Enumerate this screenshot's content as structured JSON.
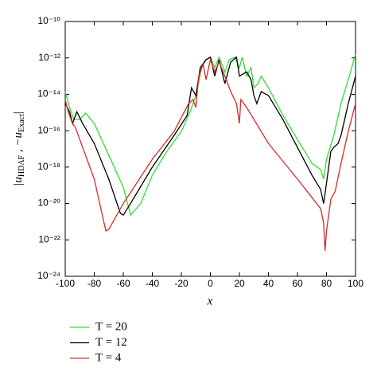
{
  "chart_data": {
    "type": "line",
    "xlabel": "x",
    "ylabel": [
      "|u",
      "HDAF",
      " , −u",
      "Exact",
      "|"
    ],
    "xlim": [
      -100,
      100
    ],
    "xticks": [
      -100,
      -80,
      -60,
      -40,
      -20,
      0,
      20,
      40,
      60,
      80,
      100
    ],
    "ylim": [
      1e-24,
      1e-10
    ],
    "yscale": "log",
    "yticks": [
      {
        "value": 1e-24,
        "label": "10⁻²⁴"
      },
      {
        "value": 1e-22,
        "label": "10⁻²²"
      },
      {
        "value": 1e-20,
        "label": "10⁻²⁰"
      },
      {
        "value": 1e-18,
        "label": "10⁻¹⁸"
      },
      {
        "value": 1e-16,
        "label": "10⁻¹⁶"
      },
      {
        "value": 1e-14,
        "label": "10⁻¹⁴"
      },
      {
        "value": 1e-12,
        "label": "10⁻¹²"
      },
      {
        "value": 1e-10,
        "label": "10⁻¹⁰"
      }
    ],
    "legend": "below",
    "series": [
      {
        "name": "T = 20",
        "color": "#33dd33",
        "x": [
          -100,
          -97,
          -94,
          -90,
          -86,
          -80,
          -70,
          -60,
          -55,
          -48,
          -40,
          -30,
          -20,
          -14,
          -10,
          -6,
          -3,
          0,
          3,
          6,
          10,
          13,
          17,
          20,
          22,
          25,
          28,
          30,
          33,
          35,
          40,
          50,
          60,
          70,
          76,
          78,
          80,
          85,
          90,
          95,
          100
        ],
        "values": [
          1.4e-14,
          1.9e-15,
          4.1e-16,
          4.1e-16,
          9.3e-16,
          2.5e-16,
          4.5e-18,
          7.9e-20,
          2.3e-21,
          1e-20,
          3.6e-19,
          7.4e-18,
          9.1e-17,
          1.1e-15,
          8.5e-15,
          2.9e-13,
          7.9e-13,
          1.1e-12,
          2.9e-13,
          1.1e-12,
          1.7e-13,
          7.9e-13,
          1.1e-12,
          2.9e-13,
          1.1e-12,
          1e-13,
          2.9e-13,
          2.3e-14,
          3.9e-14,
          1e-13,
          2.3e-14,
          6.9e-16,
          3.3e-17,
          1.6e-18,
          7.2e-19,
          2.2e-19,
          2.7e-18,
          5.5e-17,
          3.1e-15,
          6.4e-14,
          1.6e-12
        ]
      },
      {
        "name": "T = 12",
        "color": "#000000",
        "x": [
          -100,
          -97,
          -95,
          -92,
          -88,
          -80,
          -70,
          -62,
          -60,
          -55,
          -40,
          -25,
          -16,
          -13,
          -10,
          -7,
          -3,
          0,
          3,
          6,
          10,
          14,
          18,
          20,
          25,
          28,
          30,
          32,
          35,
          40,
          50,
          60,
          70,
          76,
          78,
          80,
          83,
          85,
          88,
          90,
          95,
          100
        ],
        "values": [
          3.1e-15,
          1.1e-15,
          2.5e-16,
          1.1e-15,
          2.5e-16,
          2e-17,
          2.2e-19,
          2.9e-21,
          2.3e-21,
          1e-20,
          1e-18,
          5.5e-17,
          6.9e-16,
          2.3e-14,
          8.5e-15,
          2.9e-13,
          7.9e-13,
          1.1e-12,
          1e-13,
          7.9e-13,
          3.9e-14,
          5.9e-13,
          1.1e-12,
          1e-13,
          1.7e-13,
          6.4e-14,
          8.5e-15,
          3.1e-15,
          1.4e-14,
          8.5e-15,
          4.1e-16,
          1.2e-17,
          3.6e-19,
          5.9e-20,
          1e-20,
          1.3e-19,
          7.4e-18,
          1.2e-17,
          2e-17,
          5.5e-17,
          3.1e-15,
          1e-13
        ]
      },
      {
        "name": "T = 4",
        "color": "#d62a2a",
        "x": [
          -100,
          -98,
          -95,
          -93,
          -90,
          -80,
          -72,
          -70,
          -60,
          -40,
          -25,
          -15,
          -12,
          -10,
          -8,
          -5,
          -3,
          0,
          3,
          6,
          10,
          14,
          18,
          20,
          21,
          25,
          40,
          60,
          76,
          78,
          79,
          80,
          83,
          86,
          90,
          95,
          100
        ],
        "values": [
          5.1e-15,
          1.1e-15,
          2.5e-16,
          1.5e-16,
          3.3e-17,
          2.2e-19,
          3.1e-22,
          3.8e-22,
          1e-20,
          2.7e-18,
          9.1e-17,
          3.1e-15,
          5.1e-15,
          1.9e-15,
          1e-13,
          4.5e-13,
          6.4e-14,
          7.9e-13,
          1.7e-13,
          5.9e-13,
          1e-13,
          1.4e-14,
          3.1e-15,
          2.5e-16,
          5.1e-15,
          1.9e-15,
          2e-17,
          2.2e-19,
          5.2e-21,
          8.5e-22,
          2.5e-23,
          3.1e-22,
          1.7e-20,
          4.8e-20,
          1.6e-18,
          9.1e-17,
          3.1e-15
        ]
      }
    ]
  }
}
